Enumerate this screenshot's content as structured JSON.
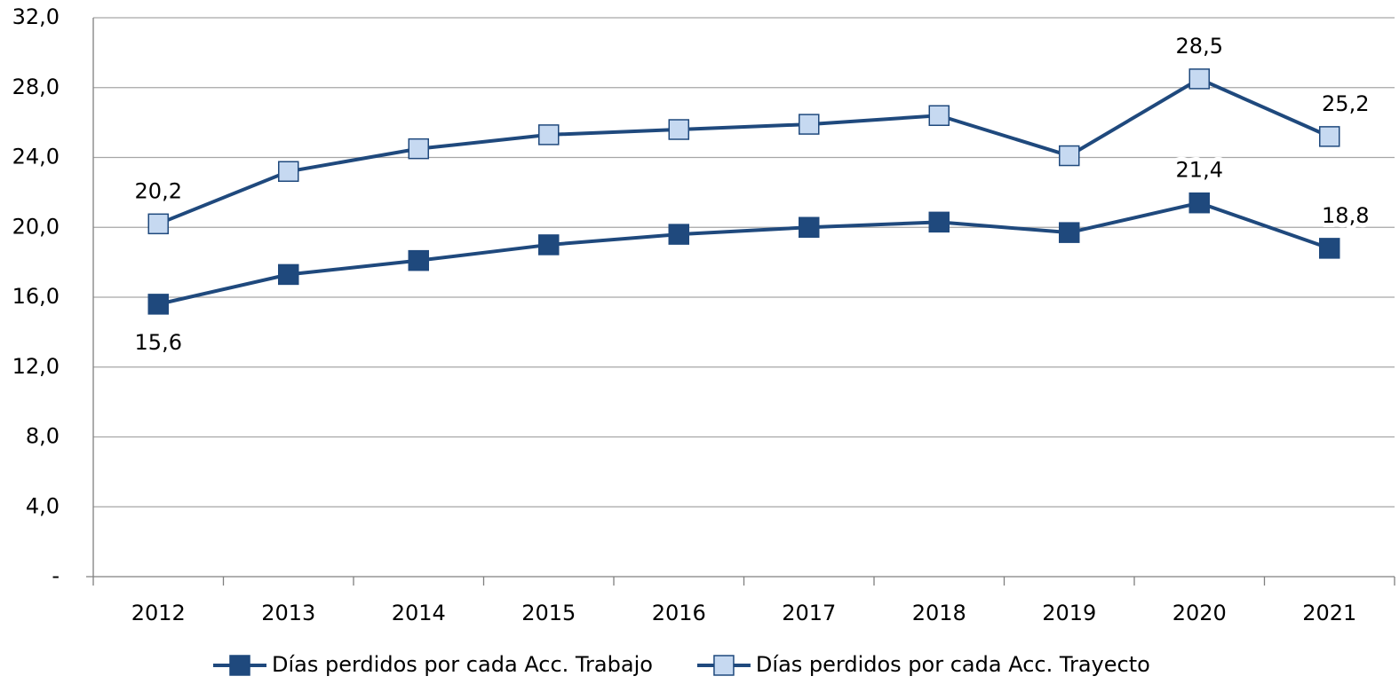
{
  "chart_data": {
    "type": "line",
    "categories": [
      "2012",
      "2013",
      "2014",
      "2015",
      "2016",
      "2017",
      "2018",
      "2019",
      "2020",
      "2021"
    ],
    "series": [
      {
        "name": "Días perdidos por cada Acc. Trabajo",
        "color": "#1f497d",
        "marker_fill": "#1f497d",
        "values": [
          15.6,
          17.3,
          18.1,
          19.0,
          19.6,
          20.0,
          20.3,
          19.7,
          21.4,
          18.8
        ],
        "value_labels": [
          "15,6",
          null,
          null,
          null,
          null,
          null,
          null,
          null,
          "21,4",
          "18,8"
        ]
      },
      {
        "name": "Días perdidos por cada Acc. Trayecto",
        "color": "#1f497d",
        "marker_fill": "#c6d9f1",
        "values": [
          20.2,
          23.2,
          24.5,
          25.3,
          25.6,
          25.9,
          26.4,
          24.1,
          28.5,
          25.2
        ],
        "value_labels": [
          "20,2",
          null,
          null,
          null,
          null,
          null,
          null,
          null,
          "28,5",
          "25,2"
        ]
      }
    ],
    "ylim": [
      0,
      32
    ],
    "yticks": [
      {
        "value": 0,
        "label": "-"
      },
      {
        "value": 4,
        "label": "4,0"
      },
      {
        "value": 8,
        "label": "8,0"
      },
      {
        "value": 12,
        "label": "12,0"
      },
      {
        "value": 16,
        "label": "16,0"
      },
      {
        "value": 20,
        "label": "20,0"
      },
      {
        "value": 24,
        "label": "24,0"
      },
      {
        "value": 28,
        "label": "28,0"
      },
      {
        "value": 32,
        "label": "32,0"
      }
    ],
    "grid": true,
    "legend": "bottom"
  }
}
